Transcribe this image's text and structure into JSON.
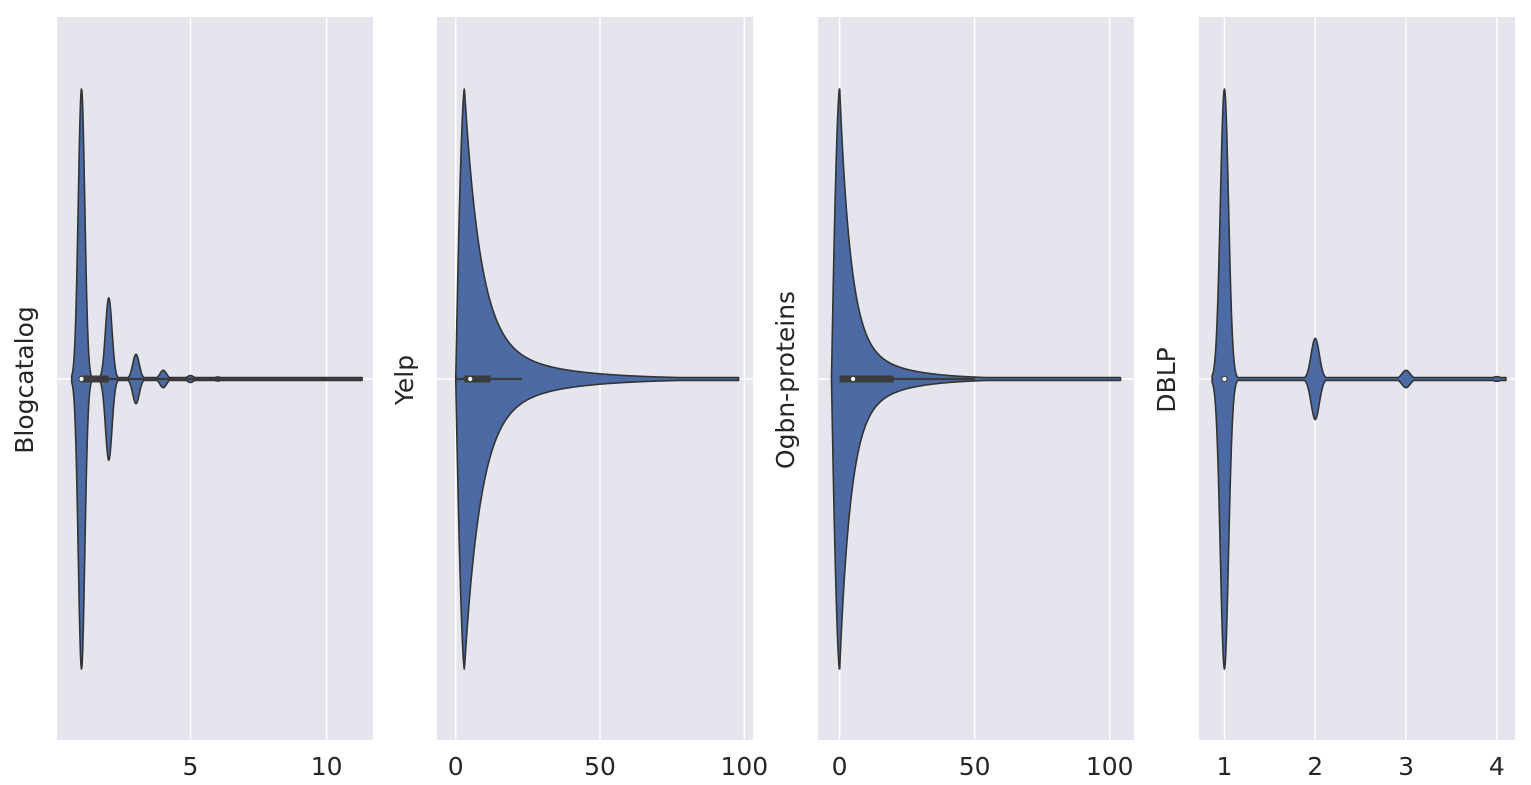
{
  "chart_data": [
    {
      "type": "violin",
      "orientation": "horizontal",
      "ylabel": "Blogcatalog",
      "xlabel": "",
      "xlim": [
        0.1,
        11.7
      ],
      "xticks": [
        5,
        10
      ],
      "xtick_labels": [
        "5",
        "10"
      ],
      "color": "#4c6aa4",
      "grid": true,
      "distribution": {
        "modes": [
          {
            "x": 1,
            "density": 1.0
          },
          {
            "x": 2,
            "density": 0.28
          },
          {
            "x": 3,
            "density": 0.085
          },
          {
            "x": 4,
            "density": 0.03
          },
          {
            "x": 5,
            "density": 0.012
          },
          {
            "x": 6,
            "density": 0.007
          }
        ],
        "mode_width": 0.12,
        "tail_end": 11.3
      },
      "box": {
        "median": 1,
        "q1": 1,
        "q3": 2,
        "whisker_low": 1,
        "whisker_high": 11.3
      }
    },
    {
      "type": "violin",
      "orientation": "horizontal",
      "ylabel": "Yelp",
      "xlabel": "",
      "xlim": [
        -6.5,
        103
      ],
      "xticks": [
        0,
        50,
        100
      ],
      "xtick_labels": [
        "0",
        "50",
        "100"
      ],
      "color": "#4c6aa4",
      "grid": true,
      "distribution": {
        "peak": 3,
        "min": 0,
        "max": 98,
        "decay_scale": 5.5
      },
      "box": {
        "median": 5,
        "q1": 3,
        "q3": 12,
        "whisker_low": 0,
        "whisker_high": 23
      }
    },
    {
      "type": "violin",
      "orientation": "horizontal",
      "ylabel": "Ogbn-proteins",
      "xlabel": "",
      "xlim": [
        -8,
        109
      ],
      "xticks": [
        0,
        50,
        100
      ],
      "xtick_labels": [
        "0",
        "50",
        "100"
      ],
      "color": "#4c6aa4",
      "grid": true,
      "distribution": {
        "peak": 0,
        "min": -3,
        "max": 104,
        "decay_scale": 4
      },
      "box": {
        "median": 5,
        "q1": 0,
        "q3": 20,
        "whisker_low": 0,
        "whisker_high": 50
      }
    },
    {
      "type": "violin",
      "orientation": "horizontal",
      "ylabel": "DBLP",
      "xlabel": "",
      "xlim": [
        0.72,
        4.2
      ],
      "xticks": [
        1,
        2,
        3,
        4
      ],
      "xtick_labels": [
        "1",
        "2",
        "3",
        "4"
      ],
      "color": "#4c6aa4",
      "grid": true,
      "distribution": {
        "modes": [
          {
            "x": 1,
            "density": 1.0
          },
          {
            "x": 2,
            "density": 0.14
          },
          {
            "x": 3,
            "density": 0.03
          },
          {
            "x": 4,
            "density": 0.008
          }
        ],
        "mode_width": 0.045,
        "tail_end": 4.1
      },
      "box": {
        "median": 1,
        "q1": 1,
        "q3": 1,
        "whisker_low": 1,
        "whisker_high": 1
      }
    }
  ]
}
